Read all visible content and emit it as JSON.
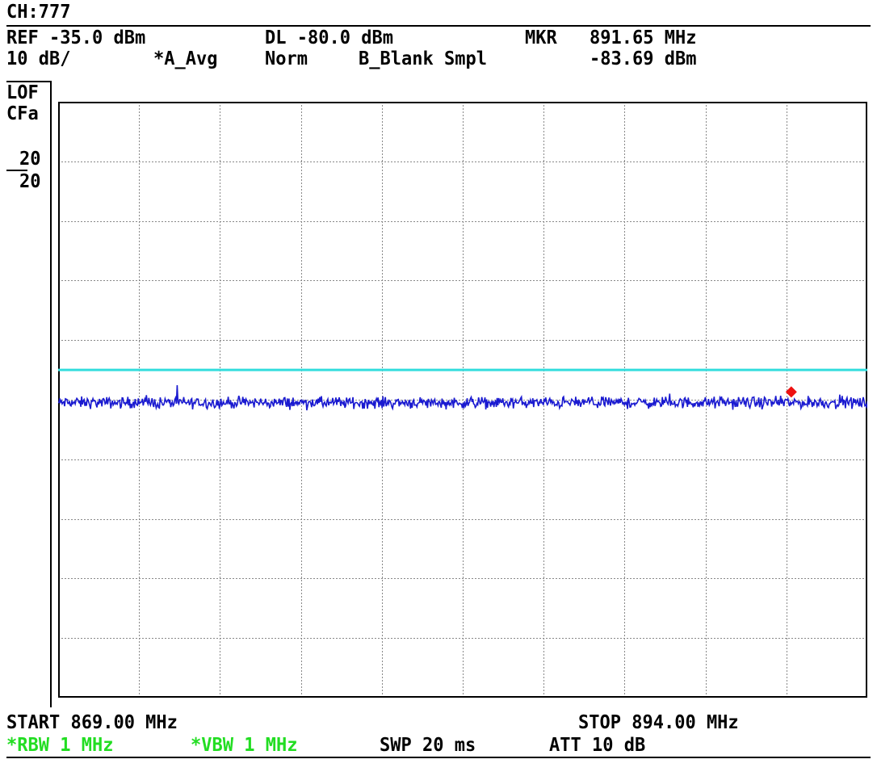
{
  "channel": "CH:777",
  "header": {
    "ref": "REF -35.0 dBm",
    "dl": "DL -80.0 dBm",
    "mkr_label": "MKR",
    "mkr_freq": "891.65 MHz",
    "scale": "10 dB/",
    "trace_a": "*A_Avg",
    "mode": "Norm",
    "trace_b": "B_Blank Smpl",
    "mkr_level": "-83.69 dBm"
  },
  "side": {
    "lof": "LOF",
    "cfa": "CFa",
    "avg_count_top": "20",
    "avg_count_bottom": "20"
  },
  "footer": {
    "start": "START 869.00 MHz",
    "stop": "STOP 894.00 MHz",
    "rbw": "*RBW 1 MHz",
    "vbw": "*VBW 1 MHz",
    "swp": "SWP 20 ms",
    "att": "ATT 10 dB"
  },
  "colors": {
    "grid": "#888888",
    "frame": "#000000",
    "display_line": "#33dddd",
    "trace": "#1a1ad0",
    "marker": "#ee1111",
    "green_text": "#22dd22"
  },
  "chart_data": {
    "type": "line",
    "x_unit": "MHz",
    "y_unit": "dBm",
    "xlim": [
      869.0,
      894.0
    ],
    "ylim": [
      -135.0,
      -35.0
    ],
    "y_div": 10,
    "x_div": 10,
    "grid": true,
    "display_line": -80.0,
    "marker": {
      "x": 891.65,
      "y": -83.69
    },
    "series": [
      {
        "mean_level": -85.5,
        "noise_pp": 2.8,
        "points": 1000
      }
    ]
  }
}
